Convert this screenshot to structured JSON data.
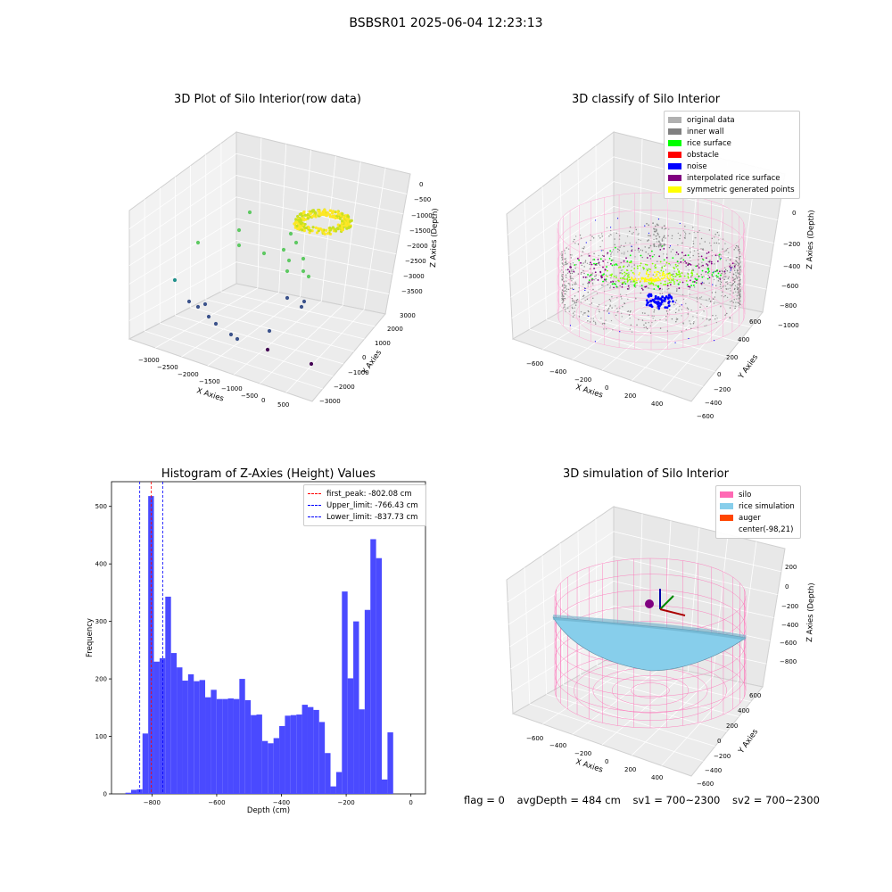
{
  "figure": {
    "suptitle": "BSBSR01 2025-06-04 12:23:13",
    "footer": {
      "flag": "flag = 0",
      "avg_depth": "avgDepth = 484 cm",
      "sv1": "sv1 = 700~2300",
      "sv2": "sv2 = 700~2300"
    }
  },
  "chart_data": [
    {
      "type": "scatter",
      "title": "3D Plot of Silo Interior(row data)",
      "xlabel": "X Axies",
      "ylabel": "Y Axies",
      "zlabel": "Z Axies (Depth)",
      "x_ticks": [
        "−3000",
        "−2500",
        "−2000",
        "−1500",
        "−1000",
        "−500",
        "0",
        "500"
      ],
      "y_ticks": [
        "−3000",
        "−2000",
        "−1000",
        "0",
        "1000",
        "2000",
        "3000"
      ],
      "z_ticks": [
        "0",
        "−500",
        "−1000",
        "−1500",
        "−2000",
        "−2500",
        "−3000",
        "−3500"
      ],
      "colormap": [
        "#440154",
        "#3b528b",
        "#21918c",
        "#5ec962",
        "#fde725"
      ]
    },
    {
      "type": "scatter",
      "title": "3D classify of Silo Interior",
      "xlabel": "X Axies",
      "ylabel": "Y Axies",
      "zlabel": "Z Axies (Depth)",
      "x_ticks": [
        "−600",
        "−400",
        "−200",
        "0",
        "200",
        "400"
      ],
      "y_ticks": [
        "600",
        "400",
        "200",
        "0",
        "−200",
        "−400",
        "−600"
      ],
      "z_ticks": [
        "0",
        "−200",
        "−400",
        "−600",
        "−800",
        "−1000"
      ],
      "legend": [
        {
          "label": "original data",
          "color": "#b0b0b0"
        },
        {
          "label": "inner wall",
          "color": "#808080"
        },
        {
          "label": "rice surface",
          "color": "#00ff00"
        },
        {
          "label": "obstacle",
          "color": "#ff0000"
        },
        {
          "label": "noise",
          "color": "#0000ff"
        },
        {
          "label": "interpolated rice surface",
          "color": "#800080"
        },
        {
          "label": "symmetric generated points",
          "color": "#ffff00"
        }
      ]
    },
    {
      "type": "bar",
      "title": "Histogram of Z-Axies (Height) Values",
      "xlabel": "Depth (cm)",
      "ylabel": "Frequency",
      "xlim": [
        -925,
        45
      ],
      "ylim": [
        0,
        543
      ],
      "x_ticks": [
        -800,
        -600,
        -400,
        -200,
        0
      ],
      "x_tick_labels": [
        "−800",
        "−600",
        "−400",
        "−200",
        "0"
      ],
      "y_ticks": [
        0,
        100,
        200,
        300,
        400,
        500
      ],
      "bin_start": -882,
      "bin_width": 17.6,
      "values": [
        2,
        7,
        8,
        105,
        518,
        230,
        236,
        343,
        245,
        220,
        197,
        208,
        196,
        198,
        168,
        181,
        165,
        165,
        166,
        165,
        200,
        163,
        137,
        138,
        92,
        88,
        97,
        118,
        136,
        137,
        138,
        155,
        151,
        146,
        125,
        71,
        13,
        38,
        352,
        201,
        300,
        147,
        320,
        443,
        410,
        25,
        107
      ],
      "bar_color": "#4a4aff",
      "legend": [
        {
          "label": "first_peak: -802.08 cm",
          "color": "#ff0000",
          "x": -802.08
        },
        {
          "label": "Upper_limit: -766.43 cm",
          "color": "#0000ff",
          "x": -766.43
        },
        {
          "label": "Lower_limit: -837.73 cm",
          "color": "#0000ff",
          "x": -837.73
        }
      ]
    },
    {
      "type": "area",
      "title": "3D simulation of Silo Interior",
      "xlabel": "X Axies",
      "ylabel": "Y Axies",
      "zlabel": "Z Axies (Depth)",
      "x_ticks": [
        "−600",
        "−400",
        "−200",
        "0",
        "200",
        "400"
      ],
      "y_ticks": [
        "600",
        "400",
        "200",
        "0",
        "−200",
        "−400",
        "−600"
      ],
      "z_ticks": [
        "200",
        "0",
        "−200",
        "−400",
        "−600",
        "−800"
      ],
      "legend": [
        {
          "label": "silo",
          "color": "#ff69b4"
        },
        {
          "label": "rice simulation",
          "color": "#87ceeb"
        },
        {
          "label": "auger",
          "color": "#ff4500"
        },
        {
          "label": "center(-98,21)",
          "color": ""
        }
      ]
    }
  ]
}
